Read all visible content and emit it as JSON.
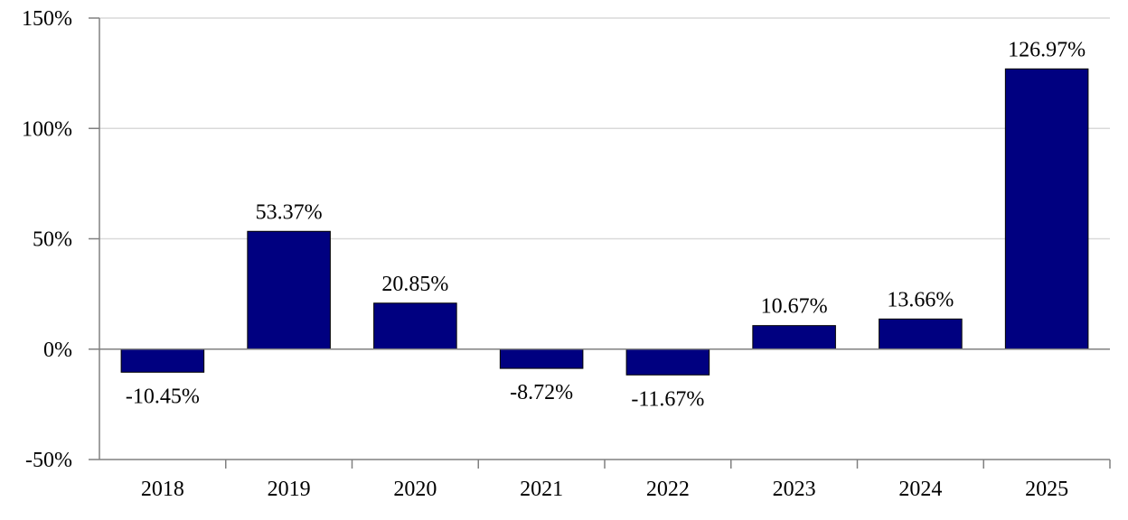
{
  "chart_data": {
    "type": "bar",
    "categories": [
      "2018",
      "2019",
      "2020",
      "2021",
      "2022",
      "2023",
      "2024",
      "2025"
    ],
    "values": [
      -10.45,
      53.37,
      20.85,
      -8.72,
      -11.67,
      10.67,
      13.66,
      126.97
    ],
    "data_labels": [
      "-10.45%",
      "53.37%",
      "20.85%",
      "-8.72%",
      "-11.67%",
      "10.67%",
      "13.66%",
      "126.97%"
    ],
    "title": "",
    "xlabel": "",
    "ylabel": "",
    "ylim": [
      -50,
      150
    ],
    "yticks": [
      150,
      100,
      50,
      0,
      -50
    ],
    "ytick_labels": [
      "150%",
      "100%",
      "50%",
      "0%",
      "-50%"
    ],
    "grid": true,
    "bar_color": "#000080",
    "grid_color": "#d9d9d9"
  }
}
